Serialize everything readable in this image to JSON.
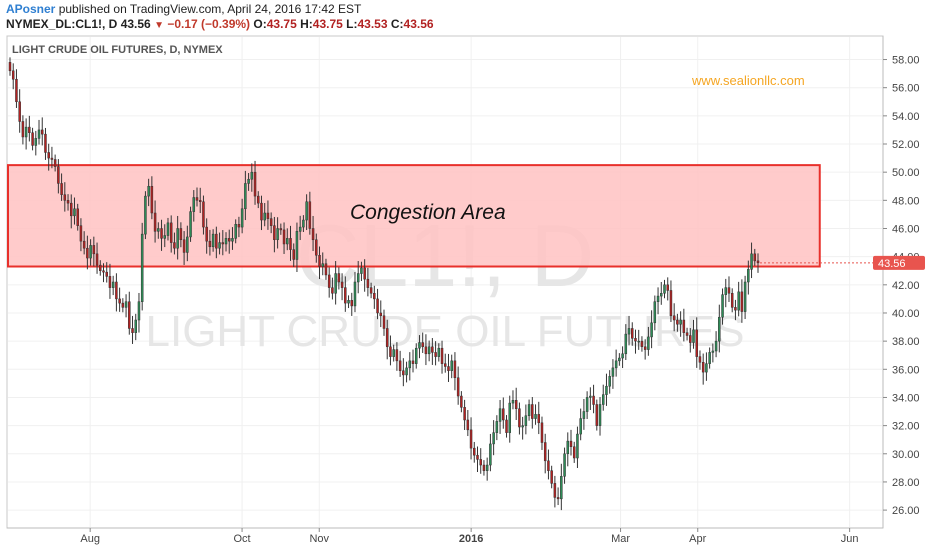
{
  "header": {
    "author": "APosner",
    "published": " published on TradingView.com, April 24, 2016 17:42 EST",
    "symbol": "NYMEX_DL:CL1!, D",
    "last": "43.56",
    "change": "−0.17 (−0.39%)",
    "open_label": "O:",
    "open": "43.75",
    "high_label": "H:",
    "high": "43.75",
    "low_label": "L:",
    "low": "43.53",
    "close_label": "C:",
    "close": "43.56"
  },
  "colors": {
    "up": "#2e8b57",
    "down": "#b22222",
    "congestion_fill": "#ffc2c2",
    "congestion_border": "#e8302b",
    "price_tag": "#e8544e",
    "watermark_site": "#f5a623"
  },
  "chart_data": {
    "type": "candlestick",
    "title": "LIGHT CRUDE OIL FUTURES, D, NYMEX",
    "watermark_symbol": "CL1!, D",
    "watermark_name": "LIGHT CRUDE OIL FUTURES",
    "site_label": "www.sealionllc.com",
    "annotation": "Congestion Area",
    "congestion_zone": {
      "from": "2015-06-29",
      "to": "2016-05-20",
      "low": 43.3,
      "high": 50.5
    },
    "current_price": 43.56,
    "current_price_label": "43.56",
    "ylim": [
      24.8,
      59.6
    ],
    "yticks": [
      "26.00",
      "28.00",
      "30.00",
      "32.00",
      "34.00",
      "36.00",
      "38.00",
      "40.00",
      "42.00",
      "44.00",
      "46.00",
      "48.00",
      "50.00",
      "52.00",
      "54.00",
      "56.00",
      "58.00"
    ],
    "x_tick_labels": [
      {
        "date": "2015-08-01",
        "label": "Aug",
        "bold": false
      },
      {
        "date": "2015-10-01",
        "label": "Oct",
        "bold": false
      },
      {
        "date": "2015-11-01",
        "label": "Nov",
        "bold": false
      },
      {
        "date": "2016-01-01",
        "label": "2016",
        "bold": true
      },
      {
        "date": "2016-03-01",
        "label": "Mar",
        "bold": false
      },
      {
        "date": "2016-04-01",
        "label": "Apr",
        "bold": false
      },
      {
        "date": "2016-06-01",
        "label": "Jun",
        "bold": false
      }
    ],
    "xlim": [
      "2015-06-29",
      "2016-06-14"
    ],
    "closes": [
      57.2,
      56.6,
      55.0,
      53.6,
      52.5,
      53.2,
      52.8,
      51.9,
      52.4,
      53.0,
      52.7,
      51.4,
      51.0,
      50.9,
      50.4,
      49.2,
      48.4,
      48.0,
      47.8,
      46.9,
      47.4,
      46.2,
      45.1,
      44.6,
      43.9,
      44.8,
      44.2,
      43.4,
      43.0,
      42.9,
      42.6,
      41.8,
      42.2,
      41.0,
      40.7,
      40.4,
      40.8,
      38.9,
      38.6,
      39.5,
      40.8,
      45.6,
      48.3,
      49.0,
      47.1,
      45.8,
      46.0,
      45.3,
      45.5,
      46.4,
      45.0,
      44.6,
      46.0,
      45.2,
      44.3,
      45.4,
      47.2,
      48.2,
      48.0,
      47.9,
      46.1,
      45.1,
      44.7,
      45.6,
      44.6,
      45.0,
      44.9,
      45.3,
      45.1,
      45.3,
      46.3,
      46.1,
      47.4,
      49.2,
      49.5,
      50.0,
      48.3,
      47.8,
      46.6,
      47.1,
      46.7,
      46.2,
      45.2,
      46.0,
      45.9,
      44.9,
      45.3,
      44.5,
      43.8,
      45.8,
      46.1,
      46.6,
      47.9,
      46.0,
      45.2,
      44.1,
      43.3,
      43.5,
      42.7,
      41.8,
      41.4,
      42.8,
      42.2,
      41.8,
      40.7,
      40.9,
      40.5,
      42.2,
      42.8,
      43.2,
      42.4,
      41.8,
      41.4,
      41.0,
      40.0,
      39.8,
      38.9,
      37.6,
      36.9,
      37.4,
      36.6,
      35.9,
      35.6,
      36.1,
      36.6,
      36.4,
      37.5,
      37.9,
      37.6,
      37.1,
      37.6,
      37.2,
      36.9,
      37.5,
      36.4,
      36.2,
      35.9,
      36.6,
      35.4,
      34.1,
      33.3,
      32.4,
      31.7,
      30.4,
      29.9,
      29.6,
      29.2,
      28.8,
      29.2,
      30.7,
      31.5,
      32.3,
      33.2,
      32.4,
      31.5,
      33.6,
      33.8,
      33.2,
      31.9,
      32.0,
      32.7,
      33.5,
      32.5,
      32.8,
      32.2,
      30.8,
      29.5,
      28.8,
      27.9,
      26.9,
      26.8,
      28.4,
      30.0,
      30.9,
      30.5,
      29.7,
      31.4,
      32.5,
      33.0,
      34.0,
      34.1,
      33.5,
      32.0,
      33.5,
      34.2,
      34.8,
      35.5,
      36.1,
      36.6,
      36.8,
      37.1,
      38.5,
      38.9,
      38.2,
      38.0,
      38.0,
      37.6,
      37.4,
      38.3,
      39.3,
      40.8,
      41.2,
      41.4,
      42.0,
      41.6,
      39.8,
      39.5,
      39.2,
      39.5,
      38.6,
      38.4,
      37.9,
      38.8,
      36.9,
      36.5,
      35.8,
      36.4,
      37.2,
      37.3,
      38.0,
      39.7,
      41.3,
      41.8,
      41.4,
      40.4,
      40.2,
      41.5,
      40.1,
      42.2,
      43.1,
      44.2,
      43.7,
      43.56
    ]
  }
}
